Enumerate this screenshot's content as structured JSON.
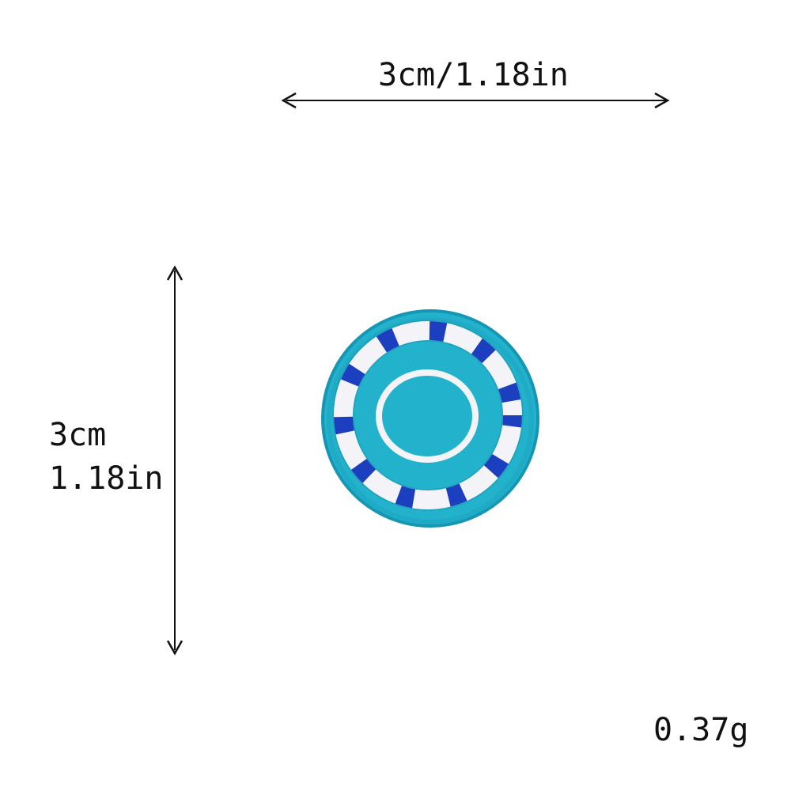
{
  "dimensions": {
    "width_label": "3cm/1.18in",
    "height_label_cm": "3cm",
    "height_label_in": "1.18in"
  },
  "weight_label": "0.37g",
  "colors": {
    "felt": "#22b2cc",
    "felt_edge": "#1496b4",
    "stitch_white": "#f4f4f8",
    "stitch_blue": "#1c3fc0",
    "arrow": "#111111"
  },
  "icons": {
    "width_arrow": "double-arrow-horizontal-icon",
    "height_arrow": "double-arrow-vertical-icon",
    "patch": "embroidered-circle-patch"
  }
}
